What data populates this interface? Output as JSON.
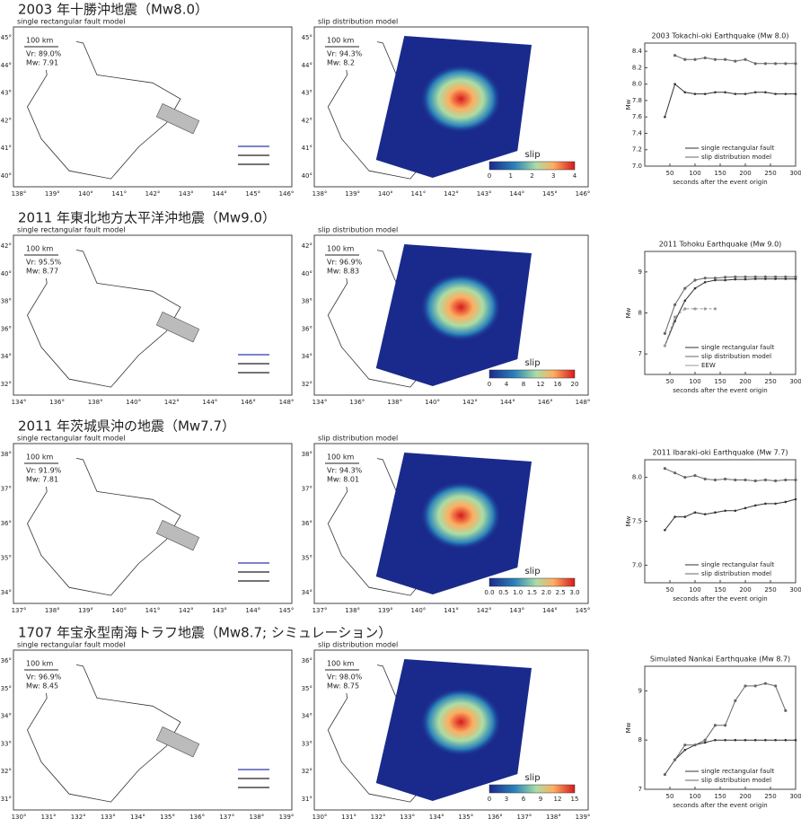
{
  "rows": [
    {
      "title": "2003 年十勝沖地震（Mw8.0）",
      "lat_labels": [
        "45°",
        "44°",
        "43°",
        "42°",
        "41°",
        "40°"
      ],
      "lon_labels": [
        "138°",
        "139°",
        "140°",
        "141°",
        "142°",
        "143°",
        "144°",
        "145°",
        "146°"
      ],
      "map": {
        "label": "single rectangular fault model",
        "scale": "100 km",
        "vr": "Vr: 89.0%",
        "mw": "Mw: 7.91"
      },
      "slip": {
        "label": "slip distribution model",
        "scale": "100 km",
        "vr": "Vr: 94.3%",
        "mw": "Mw: 8.2",
        "legend": "slip",
        "colorbar_ticks": [
          "0",
          "1",
          "2",
          "3",
          "4"
        ]
      }
    },
    {
      "title": "2011 年東北地方太平洋沖地震（Mw9.0）",
      "lat_labels": [
        "42°",
        "40°",
        "38°",
        "36°",
        "34°",
        "32°"
      ],
      "lon_labels": [
        "134°",
        "136°",
        "138°",
        "140°",
        "142°",
        "144°",
        "146°",
        "148°"
      ],
      "map": {
        "label": "single rectangular fault model",
        "scale": "100 km",
        "vr": "Vr: 95.5%",
        "mw": "Mw: 8.77"
      },
      "slip": {
        "label": "slip distribution model",
        "scale": "100 km",
        "vr": "Vr: 96.9%",
        "mw": "Mw: 8.83",
        "legend": "slip",
        "colorbar_ticks": [
          "0",
          "4",
          "8",
          "12",
          "16",
          "20"
        ]
      }
    },
    {
      "title": "2011 年茨城県沖の地震（Mw7.7）",
      "lat_labels": [
        "38°",
        "37°",
        "36°",
        "35°",
        "34°"
      ],
      "lon_labels": [
        "137°",
        "138°",
        "139°",
        "140°",
        "141°",
        "142°",
        "143°",
        "144°",
        "145°"
      ],
      "map": {
        "label": "single rectangular fault model",
        "scale": "100 km",
        "vr": "Vr: 91.9%",
        "mw": "Mw: 7.81"
      },
      "slip": {
        "label": "slip distribution model",
        "scale": "100 km",
        "vr": "Vr: 94.3%",
        "mw": "Mw: 8.01",
        "legend": "slip",
        "colorbar_ticks": [
          "0.0",
          "0.5",
          "1.0",
          "1.5",
          "2.0",
          "2.5",
          "3.0"
        ]
      }
    },
    {
      "title": "1707 年宝永型南海トラフ地震（Mw8.7; シミュレーション）",
      "lat_labels": [
        "36°",
        "35°",
        "34°",
        "33°",
        "32°",
        "31°"
      ],
      "lon_labels": [
        "130°",
        "131°",
        "132°",
        "133°",
        "134°",
        "135°",
        "136°",
        "137°",
        "138°",
        "139°"
      ],
      "map": {
        "label": "single rectangular fault model",
        "scale": "100 km",
        "vr": "Vr: 96.9%",
        "mw": "Mw: 8.45"
      },
      "slip": {
        "label": "slip distribution model",
        "scale": "100 km",
        "vr": "Vr: 98.0%",
        "mw": "Mw: 8.75",
        "legend": "slip",
        "colorbar_ticks": [
          "0",
          "3",
          "6",
          "9",
          "12",
          "15"
        ]
      }
    }
  ],
  "chart_data": [
    {
      "type": "line",
      "title": "2003 Tokachi-oki Earthquake (Mw 8.0)",
      "x_label": "seconds after the event origin",
      "y_label": "Mw",
      "x": [
        40,
        60,
        80,
        100,
        120,
        140,
        160,
        180,
        200,
        220,
        240,
        260,
        280,
        300
      ],
      "xlim": [
        0,
        300
      ],
      "xticks": [
        50,
        100,
        150,
        200,
        250,
        300
      ],
      "ylim": [
        7.0,
        8.5
      ],
      "yticks": [
        {
          "value": 7,
          "label": "7.0"
        },
        7.2,
        7.4,
        7.6,
        7.8,
        {
          "value": 8,
          "label": "8.0"
        },
        8.2,
        8.4
      ],
      "series": [
        {
          "name": "single rectangular fault",
          "color": "#333333",
          "values": [
            7.6,
            8.0,
            7.9,
            7.88,
            7.88,
            7.9,
            7.9,
            7.88,
            7.88,
            7.9,
            7.9,
            7.88,
            7.88,
            7.88
          ]
        },
        {
          "name": "slip distribution model",
          "color": "#666666",
          "values": [
            null,
            8.35,
            8.3,
            8.3,
            8.32,
            8.3,
            8.3,
            8.28,
            8.3,
            8.25,
            8.25,
            8.25,
            8.25,
            8.25
          ]
        }
      ]
    },
    {
      "type": "line",
      "title": "2011 Tohoku Earthquake (Mw 9.0)",
      "x_label": "seconds after the event origin",
      "y_label": "Mw",
      "x": [
        40,
        60,
        80,
        100,
        120,
        140,
        160,
        180,
        200,
        220,
        240,
        260,
        280,
        300
      ],
      "xlim": [
        0,
        300
      ],
      "xticks": [
        50,
        100,
        150,
        200,
        250,
        300
      ],
      "ylim": [
        6.5,
        9.5
      ],
      "yticks": [
        7,
        8,
        9
      ],
      "series": [
        {
          "name": "single rectangular fault",
          "color": "#333333",
          "values": [
            7.2,
            7.8,
            8.3,
            8.6,
            8.75,
            8.8,
            8.8,
            8.82,
            8.82,
            8.83,
            8.83,
            8.83,
            8.83,
            8.83
          ]
        },
        {
          "name": "slip distribution model",
          "color": "#666666",
          "values": [
            7.5,
            8.2,
            8.6,
            8.8,
            8.85,
            8.85,
            8.87,
            8.88,
            8.88,
            8.88,
            8.88,
            8.88,
            8.88,
            8.88
          ]
        },
        {
          "name": "EEW",
          "color": "#999999",
          "values": [
            7.2,
            7.9,
            8.1,
            8.1,
            8.1,
            8.1,
            null,
            null,
            null,
            null,
            null,
            null,
            null,
            null
          ]
        }
      ]
    },
    {
      "type": "line",
      "title": "2011 Ibaraki-oki Earthquake (Mw 7.7)",
      "x_label": "seconds after the event origin",
      "y_label": "Mw",
      "x": [
        40,
        60,
        80,
        100,
        120,
        140,
        160,
        180,
        200,
        220,
        240,
        260,
        280,
        300
      ],
      "xlim": [
        0,
        300
      ],
      "xticks": [
        50,
        100,
        150,
        200,
        250,
        300
      ],
      "ylim": [
        6.8,
        8.2
      ],
      "yticks": [
        {
          "value": 7,
          "label": "7.0"
        },
        7.5,
        {
          "value": 8,
          "label": "8.0"
        }
      ],
      "series": [
        {
          "name": "single rectangular fault",
          "color": "#333333",
          "values": [
            7.4,
            7.55,
            7.55,
            7.6,
            7.58,
            7.6,
            7.62,
            7.62,
            7.65,
            7.68,
            7.7,
            7.7,
            7.72,
            7.75
          ]
        },
        {
          "name": "slip distribution model",
          "color": "#666666",
          "values": [
            8.1,
            8.05,
            8.0,
            8.02,
            7.98,
            7.97,
            7.98,
            7.97,
            7.97,
            7.96,
            7.97,
            7.96,
            7.97,
            7.97
          ]
        }
      ]
    },
    {
      "type": "line",
      "title": "Simulated Nankai Earthquake (Mw 8.7)",
      "x_label": "seconds after the event origin",
      "y_label": "Mw",
      "x": [
        40,
        60,
        80,
        100,
        120,
        140,
        160,
        180,
        200,
        220,
        240,
        260,
        280,
        300
      ],
      "xlim": [
        0,
        300
      ],
      "xticks": [
        50,
        100,
        150,
        200,
        250,
        300
      ],
      "ylim": [
        7,
        9.5
      ],
      "yticks": [
        7,
        8,
        9
      ],
      "series": [
        {
          "name": "single rectangular fault",
          "color": "#333333",
          "values": [
            7.3,
            7.6,
            7.8,
            7.9,
            7.95,
            8.0,
            8.0,
            8.0,
            8.0,
            8.0,
            8.0,
            8.0,
            8.0,
            8.0
          ]
        },
        {
          "name": "slip distribution model",
          "color": "#666666",
          "values": [
            7.3,
            7.6,
            7.9,
            7.9,
            8.0,
            8.3,
            8.3,
            8.8,
            9.1,
            9.1,
            9.15,
            9.1,
            8.6,
            null
          ]
        }
      ]
    }
  ]
}
